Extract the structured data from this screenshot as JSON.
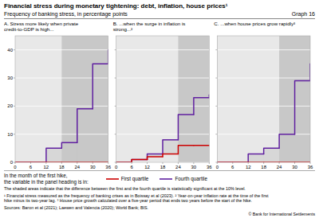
{
  "chart_data": {
    "type": "step",
    "title": "Financial stress during monetary tightening: debt, inflation, house prices¹",
    "subtitle": "Frequency of banking stress, in percentage points",
    "annotations": [
      "Graph 16",
      "The shaded areas indicate that the difference between the first and the fourth quartile is statistically significant at the 10% level.",
      "¹ Financial stress measured as the frequency of banking crises as in Boissay et al (2023).   ² Year-on-year inflation rate at the time of the first\nhike minus its two-year lag.   ³ House price growth calculated over a five-year period that ends two years before the start of the hike.",
      "Sources: Baron et al (2021); Laewen and Valencia (2020); World Bank; BIS.",
      "© Bank for International Settlements"
    ],
    "xlabel": "In the month of the first hike,\nthe variable in the panel heading is in:",
    "grid": true,
    "legend": "bottom",
    "xlim": [
      0,
      36
    ],
    "ylim": [
      0,
      45
    ],
    "xticks": [
      0,
      6,
      12,
      18,
      24,
      30,
      36
    ],
    "yticks": [
      0,
      10,
      20,
      30,
      40
    ],
    "panels": [
      {
        "title": "A. Stress more likely when private\ncredit-to-GDP is high...",
        "x": [
          0,
          6,
          12,
          18,
          24,
          30,
          36
        ],
        "series": [
          {
            "name": "First quartile",
            "color": "#cc0000",
            "values": [
              0,
              0,
              0,
              0,
              0,
              0,
              0
            ]
          },
          {
            "name": "Fourth quartile",
            "color": "#6020a0",
            "values": [
              0,
              0,
              5,
              7,
              19,
              35,
              40
            ]
          }
        ],
        "shade_ranges": [
          [
            18,
            36
          ]
        ]
      },
      {
        "title": "B. ...when the surge in inflation is\nstrong...²",
        "x": [
          0,
          6,
          12,
          18,
          24,
          30,
          36
        ],
        "series": [
          {
            "name": "First quartile",
            "color": "#cc0000",
            "values": [
              0,
              1,
              2,
              3,
              6,
              6,
              6
            ]
          },
          {
            "name": "Fourth quartile",
            "color": "#6020a0",
            "values": [
              0,
              1,
              3,
              8,
              17,
              23,
              24
            ]
          }
        ],
        "shade_ranges": [
          [
            24,
            36
          ]
        ],
        "tick_labels": "x"
      },
      {
        "title": "C. ...when house prices grow rapidly³",
        "x": [
          0,
          6,
          12,
          18,
          24,
          30,
          36
        ],
        "series": [
          {
            "name": "First quartile",
            "color": "#cc0000",
            "values": [
              0,
              0,
              0,
              0,
              0,
              0,
              0
            ]
          },
          {
            "name": "Fourth quartile",
            "color": "#6020a0",
            "values": [
              0,
              0,
              3,
              5,
              10,
              29,
              35
            ]
          }
        ],
        "shade_ranges": [
          [
            24,
            36
          ]
        ],
        "tick_labels": "x"
      }
    ]
  }
}
